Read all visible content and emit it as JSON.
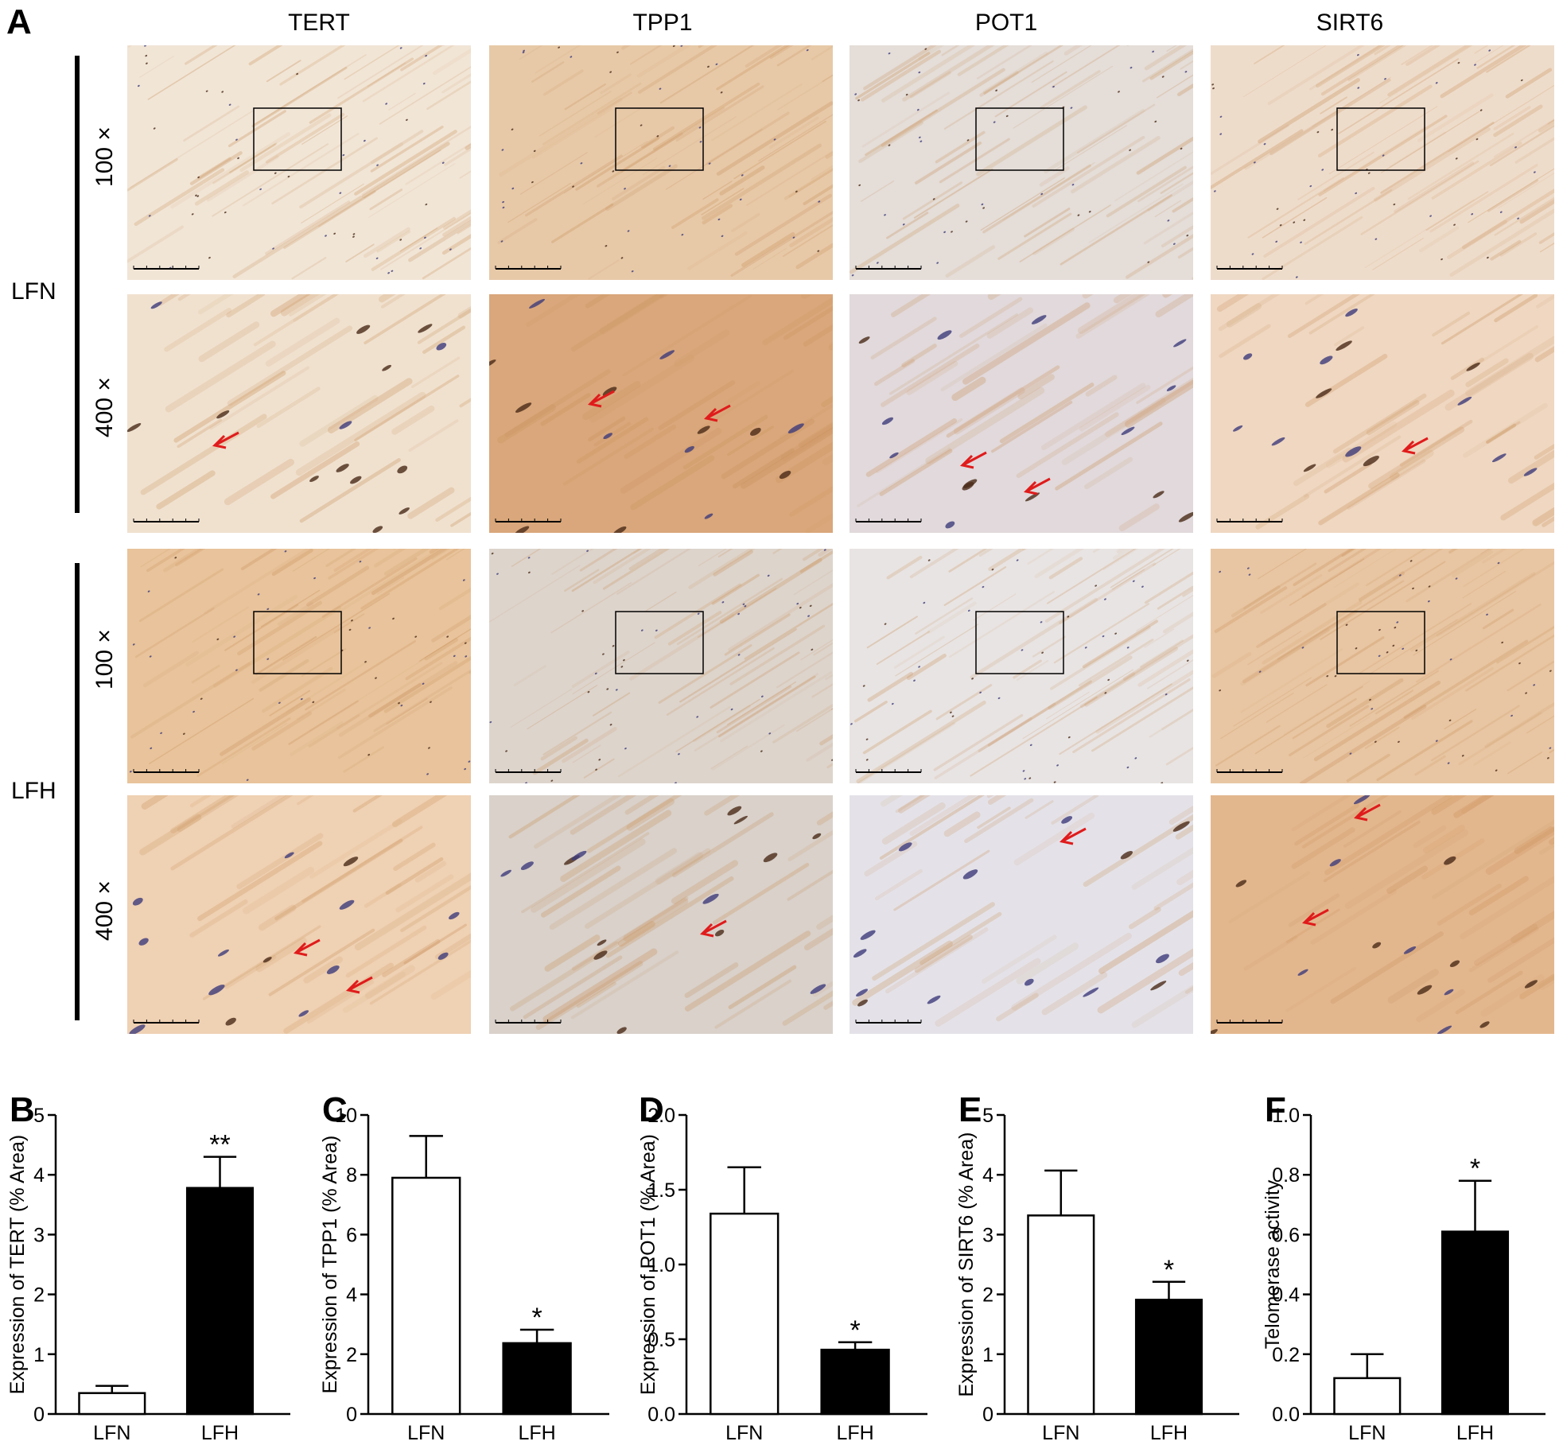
{
  "figure": {
    "panel_a_label": "A",
    "columns": [
      "TERT",
      "TPP1",
      "POT1",
      "SIRT6"
    ],
    "groups": [
      {
        "label": "LFN",
        "magnifications": [
          "100 ×",
          "400 ×"
        ]
      },
      {
        "label": "LFH",
        "magnifications": [
          "100 ×",
          "400 ×"
        ]
      }
    ],
    "colors": {
      "stain_brown": "#c9915a",
      "background_tissue": "#efe4d6",
      "nuclei": "#3d3b7a",
      "arrow": "#e01b1b"
    }
  },
  "chart_data": [
    {
      "panel": "B",
      "type": "bar",
      "categories": [
        "LFN",
        "LFH"
      ],
      "values": [
        0.35,
        3.78
      ],
      "errors": [
        0.12,
        0.52
      ],
      "significance": [
        "",
        "**"
      ],
      "fills": [
        "#ffffff",
        "#000000"
      ],
      "ylabel": "Expression of TERT (% Area)",
      "ylim": [
        0,
        5
      ],
      "yticks": [
        0,
        1,
        2,
        3,
        4,
        5
      ]
    },
    {
      "panel": "C",
      "type": "bar",
      "categories": [
        "LFN",
        "LFH"
      ],
      "values": [
        7.9,
        2.37
      ],
      "errors": [
        1.4,
        0.45
      ],
      "significance": [
        "",
        "*"
      ],
      "fills": [
        "#ffffff",
        "#000000"
      ],
      "ylabel": "Expression of TPP1 (% Area)",
      "ylim": [
        0,
        10
      ],
      "yticks": [
        0,
        2,
        4,
        6,
        8,
        10
      ]
    },
    {
      "panel": "D",
      "type": "bar",
      "categories": [
        "LFN",
        "LFH"
      ],
      "values": [
        1.34,
        0.43
      ],
      "errors": [
        0.31,
        0.05
      ],
      "significance": [
        "",
        "*"
      ],
      "fills": [
        "#ffffff",
        "#000000"
      ],
      "ylabel": "Expression of POT1 (% Area)",
      "ylim": [
        0,
        2.0
      ],
      "yticks": [
        "0.0",
        "0.5",
        "1.0",
        "1.5",
        "2.0"
      ]
    },
    {
      "panel": "E",
      "type": "bar",
      "categories": [
        "LFN",
        "LFH"
      ],
      "values": [
        3.32,
        1.91
      ],
      "errors": [
        0.75,
        0.3
      ],
      "significance": [
        "",
        "*"
      ],
      "fills": [
        "#ffffff",
        "#000000"
      ],
      "ylabel": "Expression of SIRT6 (% Area)",
      "ylim": [
        0,
        5
      ],
      "yticks": [
        0,
        1,
        2,
        3,
        4,
        5
      ]
    },
    {
      "panel": "F",
      "type": "bar",
      "categories": [
        "LFN",
        "LFH"
      ],
      "values": [
        0.12,
        0.61
      ],
      "errors": [
        0.08,
        0.17
      ],
      "significance": [
        "",
        "*"
      ],
      "fills": [
        "#ffffff",
        "#000000"
      ],
      "ylabel": "Telomerase activity",
      "ylim": [
        0,
        1.0
      ],
      "yticks": [
        "0.0",
        "0.2",
        "0.4",
        "0.6",
        "0.8",
        "1.0"
      ]
    }
  ]
}
